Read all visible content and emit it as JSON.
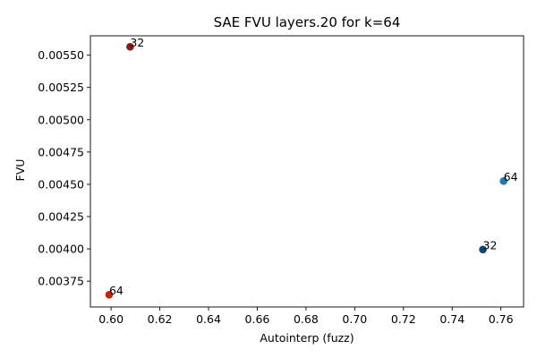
{
  "chart_data": {
    "type": "scatter",
    "title": "SAE FVU layers.20 for k=64",
    "xlabel": "Autointerp (fuzz)",
    "ylabel": "FVU",
    "xlim": [
      0.5915,
      0.7693
    ],
    "ylim": [
      0.00355,
      0.00565
    ],
    "xticks": [
      0.6,
      0.62,
      0.64,
      0.66,
      0.68,
      0.7,
      0.72,
      0.74,
      0.76
    ],
    "xtick_labels": [
      "0.60",
      "0.62",
      "0.64",
      "0.66",
      "0.68",
      "0.70",
      "0.72",
      "0.74",
      "0.76"
    ],
    "yticks": [
      0.00375,
      0.004,
      0.00425,
      0.0045,
      0.00475,
      0.005,
      0.00525,
      0.0055
    ],
    "ytick_labels": [
      "0.00375",
      "0.00400",
      "0.00425",
      "0.00450",
      "0.00475",
      "0.00500",
      "0.00525",
      "0.00550"
    ],
    "grid": false,
    "points": [
      {
        "x": 0.6078,
        "y": 0.005565,
        "label": "32",
        "color": "#8b1a0a"
      },
      {
        "x": 0.5992,
        "y": 0.003645,
        "label": "64",
        "color": "#cc2200"
      },
      {
        "x": 0.7526,
        "y": 0.003995,
        "label": "32",
        "color": "#0b4a6e"
      },
      {
        "x": 0.7611,
        "y": 0.004525,
        "label": "64",
        "color": "#1a7fb5"
      }
    ]
  }
}
